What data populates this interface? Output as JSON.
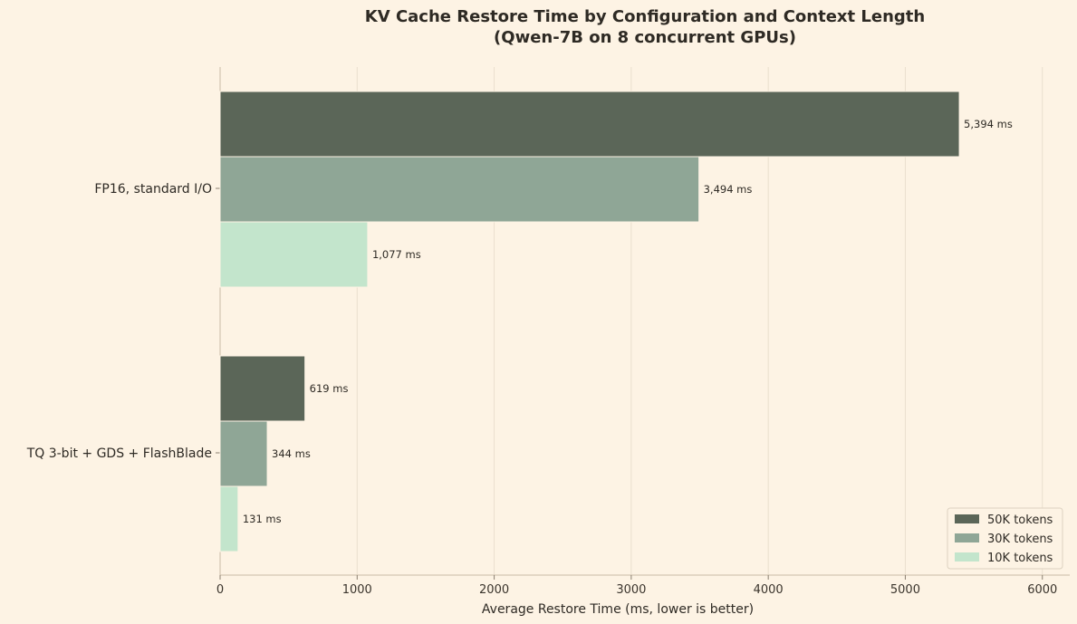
{
  "chart_data": {
    "type": "bar",
    "orientation": "horizontal",
    "title": "KV Cache Restore Time by Configuration and Context Length",
    "subtitle": "(Qwen-7B on 8 concurrent GPUs)",
    "xlabel": "Average Restore Time (ms, lower is better)",
    "ylabel": "",
    "xlim": [
      0,
      6200
    ],
    "xticks": [
      0,
      1000,
      2000,
      3000,
      4000,
      5000,
      6000
    ],
    "grid": "x",
    "legend_position": "bottom-right",
    "categories": [
      "FP16, standard I/O",
      "TQ 3-bit + GDS + FlashBlade"
    ],
    "series": [
      {
        "name": "50K tokens",
        "color": "#5b6658",
        "values": [
          5394,
          619
        ],
        "labels": [
          "5,394 ms",
          "619 ms"
        ]
      },
      {
        "name": "30K tokens",
        "color": "#8fa696",
        "values": [
          3494,
          344
        ],
        "labels": [
          "3,494 ms",
          "344 ms"
        ]
      },
      {
        "name": "10K tokens",
        "color": "#c3e5cc",
        "values": [
          1077,
          131
        ],
        "labels": [
          "1,077 ms",
          "131 ms"
        ]
      }
    ]
  }
}
